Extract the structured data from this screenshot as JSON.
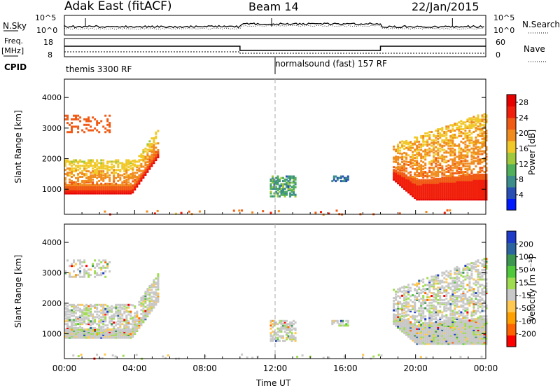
{
  "header": {
    "title": "Adak East (fitACF)",
    "beam": "Beam 14",
    "date": "22/Jan/2015"
  },
  "top_panels": {
    "nsky_label": "N.Sky",
    "nsky_ticks": [
      "10^5",
      "10^0"
    ],
    "nsearch_label": "N.Search",
    "nsearch_ticks": [
      "10^5",
      "10^0"
    ],
    "freq_label_1": "Freq.",
    "freq_label_2": "[MHz]",
    "freq_ticks": [
      "18",
      "8"
    ],
    "nave_label": "Nave",
    "nave_ticks": [
      "60",
      "0"
    ],
    "cpid_label": "CPID",
    "cpid_segments": [
      {
        "start_hour": 0,
        "end_hour": 12,
        "label": "themis 3300 RF"
      },
      {
        "start_hour": 12,
        "end_hour": 24,
        "label": "normalsound (fast) 157 RF"
      }
    ]
  },
  "x_axis": {
    "label": "Time UT",
    "ticks": [
      "00:00",
      "04:00",
      "08:00",
      "12:00",
      "16:00",
      "20:00",
      "00:00"
    ]
  },
  "colors": {
    "power_scale": [
      "#0019ff",
      "#2850b4",
      "#3c8c8c",
      "#50af5a",
      "#a0c83c",
      "#f0c828",
      "#f08c1e",
      "#f05a14",
      "#f01e0a",
      "#e60000"
    ],
    "velocity_scale": [
      "#ff0000",
      "#ff6400",
      "#ffa000",
      "#ffc850",
      "#c8c8c8",
      "#a0dc50",
      "#50c83c",
      "#3c9650",
      "#2c64a0",
      "#1e3cc8"
    ]
  },
  "chart_data": [
    {
      "type": "heatmap",
      "name": "power",
      "ylabel": "Slant Range [km]",
      "ylim": [
        180,
        4600
      ],
      "yticks": [
        "1000",
        "2000",
        "3000",
        "4000"
      ],
      "xlim": [
        0,
        24
      ],
      "colorbar_label": "Power [dB]",
      "colorbar_ticks": [
        "4",
        "8",
        "12",
        "16",
        "20",
        "24",
        "28"
      ],
      "colorbar_range": [
        0,
        30
      ],
      "regions": [
        {
          "t0": 0,
          "t1": 5.4,
          "r0": 700,
          "r1": 3500,
          "peak_db": 27
        },
        {
          "t0": 11.7,
          "t1": 13.1,
          "r0": 800,
          "r1": 1500,
          "peak_db": 10
        },
        {
          "t0": 15.2,
          "t1": 16.2,
          "r0": 1300,
          "r1": 1500,
          "peak_db": 8
        },
        {
          "t0": 18.7,
          "t1": 24,
          "r0": 700,
          "r1": 3500,
          "peak_db": 27
        }
      ]
    },
    {
      "type": "heatmap",
      "name": "velocity",
      "ylabel": "Slant Range [km]",
      "ylim": [
        180,
        4600
      ],
      "yticks": [
        "1000",
        "2000",
        "3000",
        "4000"
      ],
      "xlim": [
        0,
        24
      ],
      "colorbar_label": "Velocity [m s⁻¹]",
      "colorbar_ticks": [
        "200",
        "100",
        "50",
        "15",
        "-15",
        "-50",
        "-100",
        "-200"
      ],
      "colorbar_range": [
        -250,
        250
      ]
    }
  ]
}
